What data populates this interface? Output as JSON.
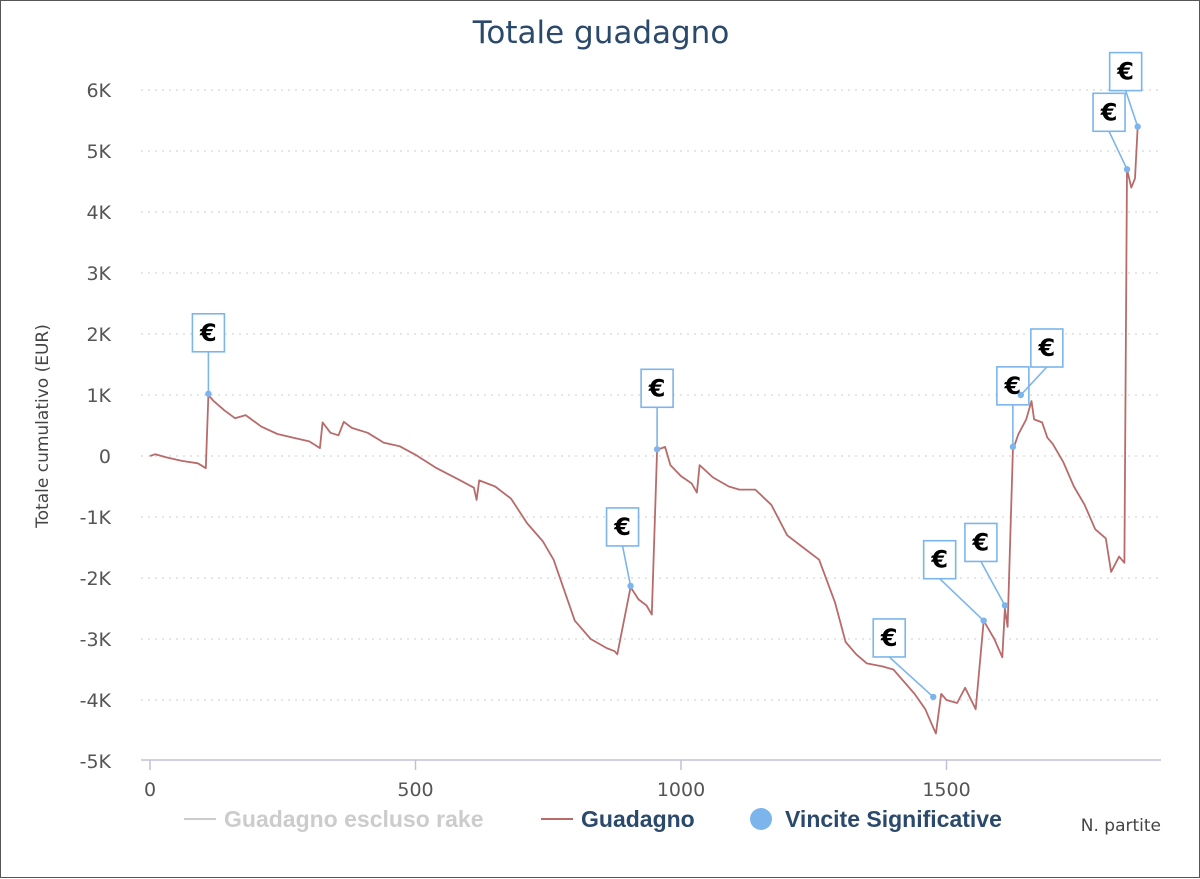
{
  "chart_data": {
    "type": "line",
    "title": "Totale guadagno",
    "ylabel": "Totale cumulativo (EUR)",
    "xlabel": "N. partite",
    "xlim": [
      0,
      1900
    ],
    "ylim": [
      -5000,
      6000
    ],
    "x_ticks": [
      "0",
      "500",
      "1000",
      "1500"
    ],
    "y_ticks": [
      "6K",
      "5K",
      "4K",
      "3K",
      "2K",
      "1K",
      "0",
      "-1K",
      "-2K",
      "-3K",
      "-4K",
      "-5K"
    ],
    "grid": true,
    "legend_position": "bottom",
    "legend": [
      {
        "label": "Guadagno escluso rake",
        "color": "#cccccc",
        "symbol": "line"
      },
      {
        "label": "Guadagno",
        "color": "#b86b6b",
        "symbol": "line"
      },
      {
        "label": "Vincite Significative",
        "color": "#7cb5ec",
        "symbol": "dot"
      }
    ],
    "series": [
      {
        "name": "Guadagno",
        "color": "#b86b6b",
        "points": [
          [
            0,
            0
          ],
          [
            10,
            30
          ],
          [
            30,
            -20
          ],
          [
            60,
            -80
          ],
          [
            90,
            -120
          ],
          [
            105,
            -200
          ],
          [
            110,
            1000
          ],
          [
            120,
            900
          ],
          [
            140,
            750
          ],
          [
            160,
            620
          ],
          [
            180,
            670
          ],
          [
            210,
            480
          ],
          [
            240,
            360
          ],
          [
            270,
            300
          ],
          [
            300,
            240
          ],
          [
            320,
            130
          ],
          [
            325,
            550
          ],
          [
            340,
            380
          ],
          [
            355,
            340
          ],
          [
            365,
            560
          ],
          [
            380,
            460
          ],
          [
            410,
            380
          ],
          [
            440,
            220
          ],
          [
            470,
            160
          ],
          [
            500,
            20
          ],
          [
            540,
            -200
          ],
          [
            580,
            -380
          ],
          [
            610,
            -520
          ],
          [
            615,
            -720
          ],
          [
            620,
            -400
          ],
          [
            650,
            -500
          ],
          [
            680,
            -700
          ],
          [
            710,
            -1100
          ],
          [
            740,
            -1400
          ],
          [
            760,
            -1700
          ],
          [
            780,
            -2200
          ],
          [
            800,
            -2700
          ],
          [
            830,
            -3000
          ],
          [
            860,
            -3150
          ],
          [
            875,
            -3200
          ],
          [
            880,
            -3250
          ],
          [
            905,
            -2150
          ],
          [
            920,
            -2350
          ],
          [
            935,
            -2450
          ],
          [
            945,
            -2600
          ],
          [
            955,
            100
          ],
          [
            970,
            150
          ],
          [
            980,
            -150
          ],
          [
            1000,
            -330
          ],
          [
            1020,
            -450
          ],
          [
            1030,
            -600
          ],
          [
            1035,
            -150
          ],
          [
            1060,
            -350
          ],
          [
            1090,
            -500
          ],
          [
            1110,
            -550
          ],
          [
            1140,
            -550
          ],
          [
            1170,
            -800
          ],
          [
            1200,
            -1300
          ],
          [
            1230,
            -1500
          ],
          [
            1260,
            -1700
          ],
          [
            1290,
            -2400
          ],
          [
            1310,
            -3050
          ],
          [
            1330,
            -3250
          ],
          [
            1350,
            -3400
          ],
          [
            1380,
            -3450
          ],
          [
            1400,
            -3500
          ],
          [
            1420,
            -3700
          ],
          [
            1440,
            -3900
          ],
          [
            1460,
            -4150
          ],
          [
            1475,
            -4450
          ],
          [
            1480,
            -4550
          ],
          [
            1490,
            -3900
          ],
          [
            1500,
            -4000
          ],
          [
            1520,
            -4050
          ],
          [
            1535,
            -3800
          ],
          [
            1555,
            -4150
          ],
          [
            1570,
            -2700
          ],
          [
            1590,
            -3000
          ],
          [
            1605,
            -3300
          ],
          [
            1610,
            -2500
          ],
          [
            1615,
            -2800
          ],
          [
            1625,
            100
          ],
          [
            1635,
            350
          ],
          [
            1650,
            600
          ],
          [
            1660,
            900
          ],
          [
            1665,
            600
          ],
          [
            1680,
            550
          ],
          [
            1690,
            300
          ],
          [
            1700,
            200
          ],
          [
            1720,
            -100
          ],
          [
            1740,
            -500
          ],
          [
            1760,
            -800
          ],
          [
            1780,
            -1200
          ],
          [
            1800,
            -1350
          ],
          [
            1810,
            -1900
          ],
          [
            1825,
            -1650
          ],
          [
            1835,
            -1750
          ],
          [
            1840,
            4700
          ],
          [
            1848,
            4400
          ],
          [
            1855,
            4550
          ],
          [
            1860,
            5400
          ]
        ]
      }
    ],
    "significant_wins": [
      {
        "x": 110,
        "y": 1020,
        "label": "€"
      },
      {
        "x": 905,
        "y": -2130,
        "label": "€"
      },
      {
        "x": 955,
        "y": 110,
        "label": "€"
      },
      {
        "x": 1475,
        "y": -3950,
        "label": "€"
      },
      {
        "x": 1570,
        "y": -2700,
        "label": "€"
      },
      {
        "x": 1610,
        "y": -2450,
        "label": "€"
      },
      {
        "x": 1625,
        "y": 150,
        "label": "€"
      },
      {
        "x": 1640,
        "y": 1000,
        "label": "€"
      },
      {
        "x": 1840,
        "y": 4700,
        "label": "€"
      },
      {
        "x": 1860,
        "y": 5400,
        "label": "€"
      }
    ]
  }
}
